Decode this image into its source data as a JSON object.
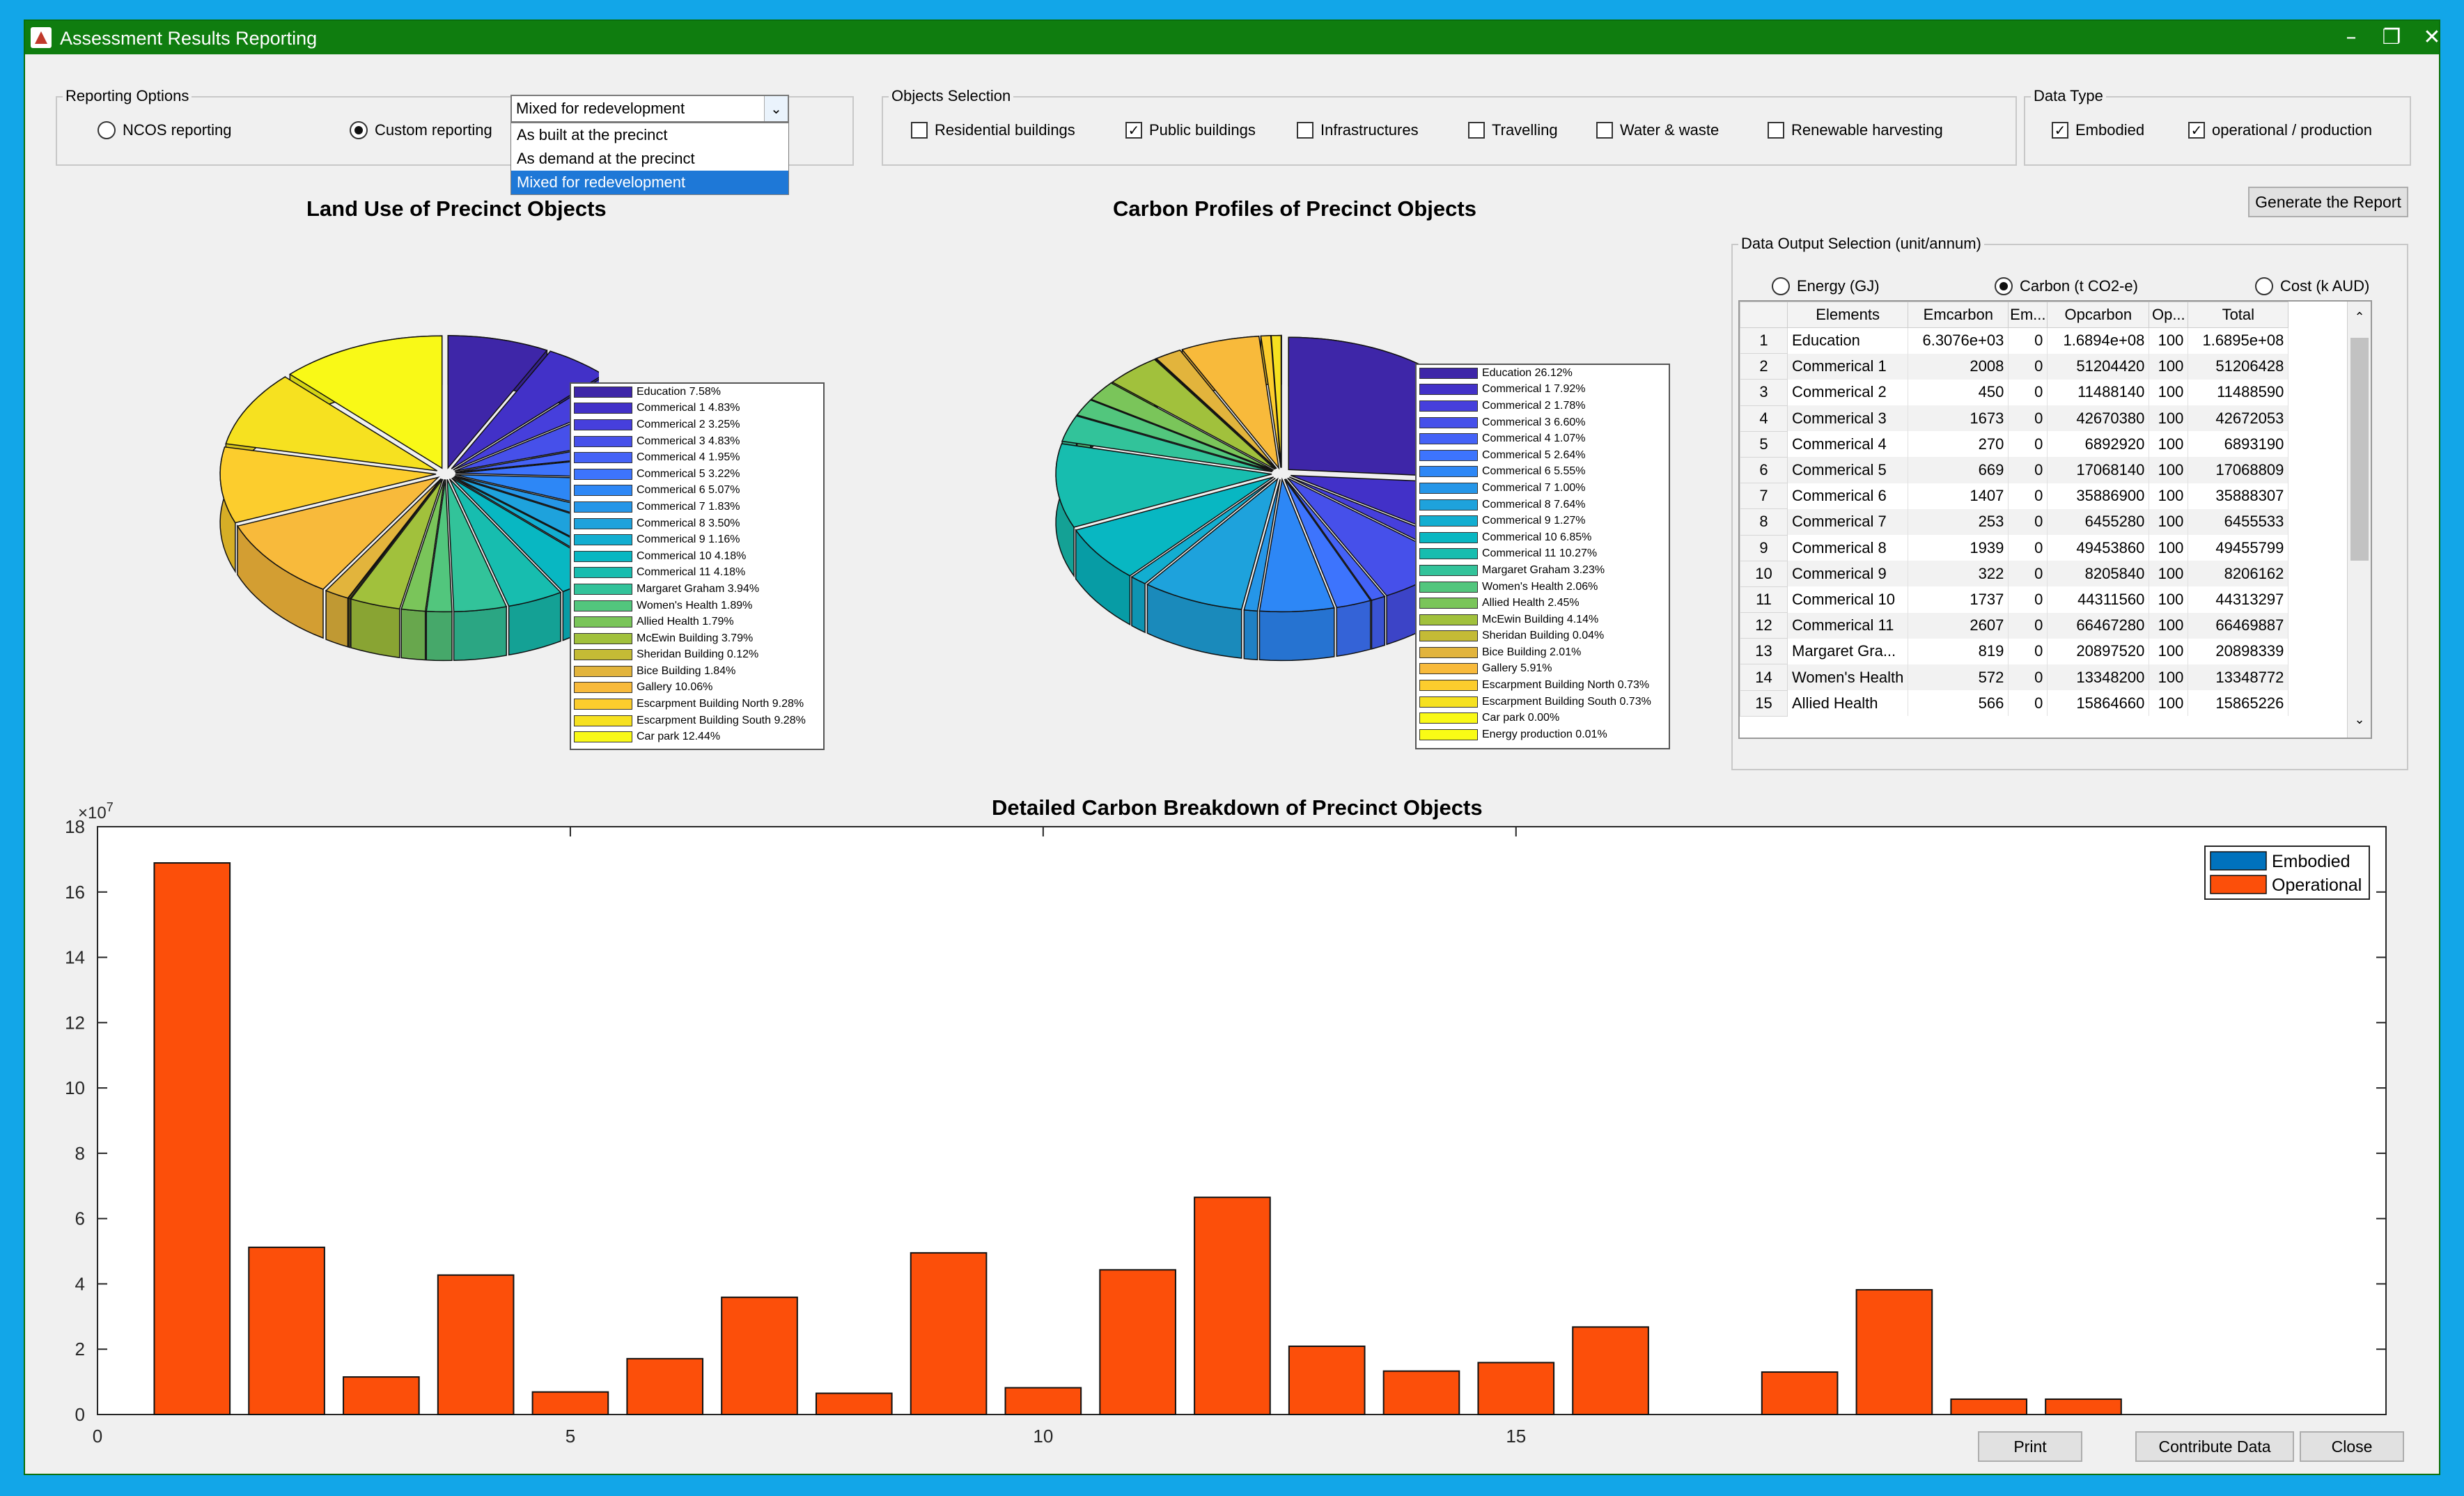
{
  "window": {
    "title": "Assessment Results Reporting"
  },
  "reporting_options": {
    "title": "Reporting Options",
    "ncos_label": "NCOS reporting",
    "custom_label": "Custom reporting",
    "selected": "custom",
    "dropdown_value": "Mixed for redevelopment",
    "dropdown_options": [
      "As built at the precinct",
      "As demand at the precinct",
      "Mixed for redevelopment"
    ],
    "dropdown_selected_index": 2
  },
  "objects_selection": {
    "title": "Objects Selection",
    "items": [
      {
        "label": "Residential buildings",
        "checked": false
      },
      {
        "label": "Public buildings",
        "checked": true
      },
      {
        "label": "Infrastructures",
        "checked": false
      },
      {
        "label": "Travelling",
        "checked": false
      },
      {
        "label": "Water & waste",
        "checked": false
      },
      {
        "label": "Renewable harvesting",
        "checked": false
      }
    ]
  },
  "data_type": {
    "title": "Data Type",
    "items": [
      {
        "label": "Embodied",
        "checked": true
      },
      {
        "label": "operational / production",
        "checked": true
      }
    ]
  },
  "generate_button": "Generate the Report",
  "output_selection": {
    "title": "Data Output Selection (unit/annum)",
    "options": [
      "Energy (GJ)",
      "Carbon (t CO2-e)",
      "Cost (k AUD)"
    ],
    "selected_index": 1
  },
  "table": {
    "headers": [
      "Elements",
      "Emcarbon",
      "Em...",
      "Opcarbon",
      "Op...",
      "Total"
    ],
    "rows": [
      [
        "1",
        "Education",
        "6.3076e+03",
        "0",
        "1.6894e+08",
        "100",
        "1.6895e+08"
      ],
      [
        "2",
        "Commerical 1",
        "2008",
        "0",
        "51204420",
        "100",
        "51206428"
      ],
      [
        "3",
        "Commerical 2",
        "450",
        "0",
        "11488140",
        "100",
        "11488590"
      ],
      [
        "4",
        "Commerical 3",
        "1673",
        "0",
        "42670380",
        "100",
        "42672053"
      ],
      [
        "5",
        "Commerical 4",
        "270",
        "0",
        "6892920",
        "100",
        "6893190"
      ],
      [
        "6",
        "Commerical 5",
        "669",
        "0",
        "17068140",
        "100",
        "17068809"
      ],
      [
        "7",
        "Commerical 6",
        "1407",
        "0",
        "35886900",
        "100",
        "35888307"
      ],
      [
        "8",
        "Commerical 7",
        "253",
        "0",
        "6455280",
        "100",
        "6455533"
      ],
      [
        "9",
        "Commerical 8",
        "1939",
        "0",
        "49453860",
        "100",
        "49455799"
      ],
      [
        "10",
        "Commerical 9",
        "322",
        "0",
        "8205840",
        "100",
        "8206162"
      ],
      [
        "11",
        "Commerical 10",
        "1737",
        "0",
        "44311560",
        "100",
        "44313297"
      ],
      [
        "12",
        "Commerical 11",
        "2607",
        "0",
        "66467280",
        "100",
        "66469887"
      ],
      [
        "13",
        "Margaret Gra...",
        "819",
        "0",
        "20897520",
        "100",
        "20898339"
      ],
      [
        "14",
        "Women's Health",
        "572",
        "0",
        "13348200",
        "100",
        "13348772"
      ],
      [
        "15",
        "Allied Health",
        "566",
        "0",
        "15864660",
        "100",
        "15865226"
      ]
    ]
  },
  "buttons": {
    "print": "Print",
    "contribute": "Contribute Data",
    "close": "Close"
  },
  "chart_data": [
    {
      "type": "pie",
      "title": "Land Use of Precinct Objects",
      "labels": [
        "Education",
        "Commerical 1",
        "Commerical 2",
        "Commerical 3",
        "Commerical 4",
        "Commerical 5",
        "Commerical 6",
        "Commerical 7",
        "Commerical 8",
        "Commerical 9",
        "Commerical 10",
        "Commerical 11",
        "Margaret Graham",
        "Women's Health",
        "Allied Health",
        "McEwin Building",
        "Sheridan Building",
        "Bice Building",
        "Gallery",
        "Escarpment Building North",
        "Escarpment Building South",
        "Car park"
      ],
      "values": [
        7.58,
        4.83,
        3.25,
        4.83,
        1.95,
        3.22,
        5.07,
        1.83,
        3.5,
        1.16,
        4.18,
        4.18,
        3.94,
        1.89,
        1.79,
        3.79,
        0.12,
        1.84,
        10.06,
        9.28,
        9.28,
        12.44
      ],
      "legend_text": [
        "Education  7.58%",
        "Commerical 1  4.83%",
        "Commerical 2  3.25%",
        "Commerical 3  4.83%",
        "Commerical 4  1.95%",
        "Commerical 5  3.22%",
        "Commerical 6  5.07%",
        "Commerical 7  1.83%",
        "Commerical 8  3.50%",
        "Commerical 9  1.16%",
        "Commerical 10  4.18%",
        "Commerical 11  4.18%",
        "Margaret Graham  3.94%",
        "Women's Health  1.89%",
        "Allied Health  1.79%",
        "McEwin Building  3.79%",
        "Sheridan Building  0.12%",
        "Bice Building  1.84%",
        "Gallery  10.06%",
        "Escarpment Building North  9.28%",
        "Escarpment Building South  9.28%",
        "Car park  12.44%"
      ],
      "colors": [
        "#3e26a8",
        "#4231c8",
        "#463fdc",
        "#4650ea",
        "#4462f7",
        "#3d74fd",
        "#2d87f6",
        "#2596e8",
        "#1ea2dc",
        "#12aed1",
        "#08b7c2",
        "#17bdaf",
        "#32c39a",
        "#52c67d",
        "#7ac55a",
        "#a1c13c",
        "#c4bb35",
        "#e2b43c",
        "#f8ba3b",
        "#fccd2d",
        "#f6e120",
        "#f9f917"
      ],
      "exploded": true
    },
    {
      "type": "pie",
      "title": "Carbon Profiles of Precinct Objects",
      "labels": [
        "Education",
        "Commerical 1",
        "Commerical 2",
        "Commerical 3",
        "Commerical 4",
        "Commerical 5",
        "Commerical 6",
        "Commerical 7",
        "Commerical 8",
        "Commerical 9",
        "Commerical 10",
        "Commerical 11",
        "Margaret Graham",
        "Women's Health",
        "Allied Health",
        "McEwin Building",
        "Sheridan Building",
        "Bice Building",
        "Gallery",
        "Escarpment Building North",
        "Escarpment Building South",
        "Car park",
        "Energy production"
      ],
      "values": [
        26.12,
        7.92,
        1.78,
        6.6,
        1.07,
        2.64,
        5.55,
        1.0,
        7.64,
        1.27,
        6.85,
        10.27,
        3.23,
        2.06,
        2.45,
        4.14,
        0.04,
        2.01,
        5.91,
        0.73,
        0.73,
        0.0,
        0.01
      ],
      "legend_text": [
        "Education  26.12%",
        "Commerical 1  7.92%",
        "Commerical 2  1.78%",
        "Commerical 3  6.60%",
        "Commerical 4  1.07%",
        "Commerical 5  2.64%",
        "Commerical 6  5.55%",
        "Commerical 7  1.00%",
        "Commerical 8  7.64%",
        "Commerical 9  1.27%",
        "Commerical 10  6.85%",
        "Commerical 11  10.27%",
        "Margaret Graham  3.23%",
        "Women's Health  2.06%",
        "Allied Health  2.45%",
        "McEwin Building  4.14%",
        "Sheridan Building  0.04%",
        "Bice Building  2.01%",
        "Gallery  5.91%",
        "Escarpment Building North  0.73%",
        "Escarpment Building South  0.73%",
        "Car park  0.00%",
        "Energy production  0.01%"
      ],
      "colors": [
        "#3e26a8",
        "#4231c8",
        "#463fdc",
        "#4650ea",
        "#4462f7",
        "#3d74fd",
        "#2d87f6",
        "#2596e8",
        "#1ea2dc",
        "#12aed1",
        "#08b7c2",
        "#17bdaf",
        "#32c39a",
        "#52c67d",
        "#7ac55a",
        "#a1c13c",
        "#c4bb35",
        "#e2b43c",
        "#f8ba3b",
        "#fccd2d",
        "#f6e120",
        "#f9f917",
        "#f9fb15"
      ],
      "exploded": true
    },
    {
      "type": "bar",
      "title": "Detailed Carbon Breakdown of Precinct Objects",
      "x": [
        1,
        2,
        3,
        4,
        5,
        6,
        7,
        8,
        9,
        10,
        11,
        12,
        13,
        14,
        15,
        16,
        17,
        18,
        19,
        20,
        21,
        22,
        23,
        24
      ],
      "xlim": [
        0,
        24.2
      ],
      "ylim": [
        0,
        18
      ],
      "y_multiplier": "×10",
      "y_multiplier_exp": "7",
      "xticks": [
        0,
        5,
        10,
        15
      ],
      "yticks": [
        0,
        2,
        4,
        6,
        8,
        10,
        12,
        14,
        16,
        18
      ],
      "series": [
        {
          "name": "Embodied",
          "color": "#0072bd",
          "values": [
            0.00063,
            0.0002,
            5e-05,
            0.00017,
            3e-05,
            7e-05,
            0.00014,
            3e-05,
            0.00019,
            3e-05,
            0.00017,
            0.00026,
            8e-05,
            6e-05,
            6e-05,
            0.00013,
            0,
            6e-05,
            0.00012,
            2e-05,
            2e-05,
            0,
            0,
            0
          ]
        },
        {
          "name": "Operational",
          "color": "#fc4f0a",
          "values": [
            16.89,
            5.12,
            1.15,
            4.27,
            0.69,
            1.71,
            3.59,
            0.65,
            4.95,
            0.82,
            4.43,
            6.65,
            2.09,
            1.33,
            1.59,
            2.68,
            0,
            1.3,
            3.82,
            0.47,
            0.47,
            0,
            0,
            0
          ]
        }
      ],
      "legend_position": "top-right",
      "grid": false
    }
  ]
}
